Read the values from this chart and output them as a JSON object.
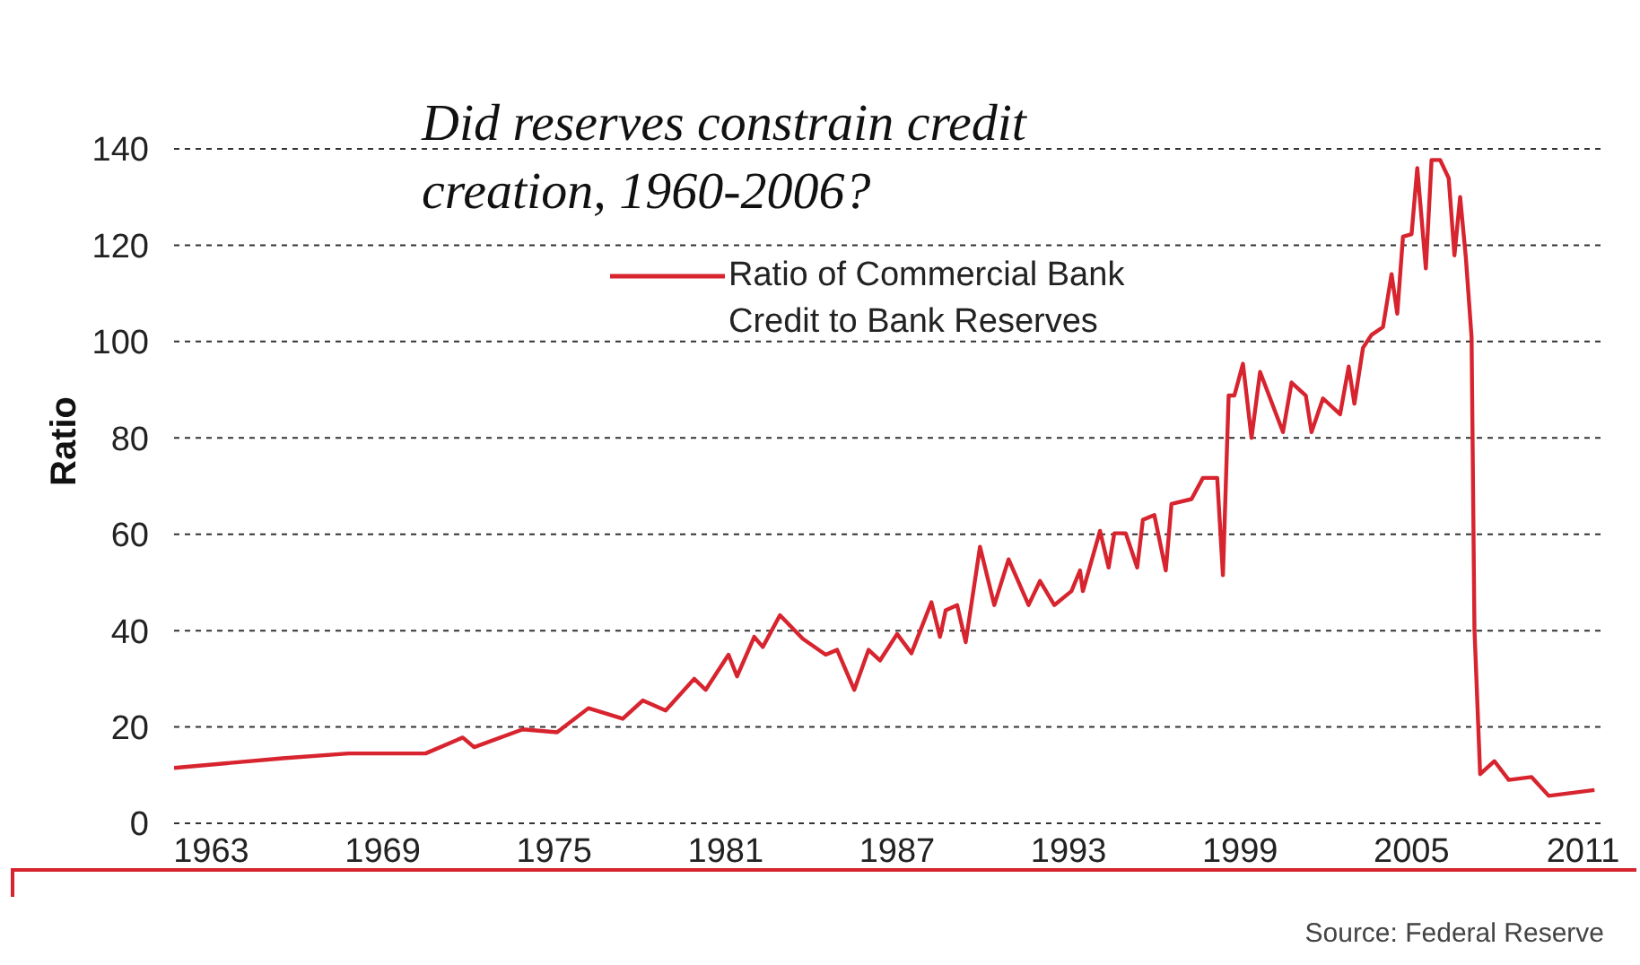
{
  "chart_data": {
    "type": "line",
    "title": "Did reserves constrain credit creation, 1960-2006?",
    "ylabel": "Ratio",
    "annotations": [
      "Source: Federal Reserve"
    ],
    "xlim": [
      1961.7,
      2011.8
    ],
    "xticks": [
      1963,
      1969,
      1975,
      1981,
      1987,
      1993,
      1999,
      2005,
      2011
    ],
    "ylim": [
      0,
      140
    ],
    "yticks": [
      0,
      20,
      40,
      60,
      80,
      100,
      120,
      140
    ],
    "grid": "y",
    "legend": "top",
    "marker": "none",
    "line_style": "solid",
    "series": [
      {
        "name": "Ratio of Commercial Bank Credit to Bank Reserves",
        "color": "#d7242e",
        "x": [
          1961.7,
          1965.5,
          1967.8,
          1970.5,
          1971.8,
          1972.2,
          1973.9,
          1975.1,
          1976.2,
          1977.4,
          1978.1,
          1978.9,
          1979.9,
          1980.3,
          1981.1,
          1981.4,
          1982,
          1982.3,
          1982.9,
          1983.7,
          1984.5,
          1984.9,
          1985.5,
          1986,
          1986.4,
          1987,
          1987.5,
          1988.2,
          1988.5,
          1988.7,
          1989.1,
          1989.4,
          1989.9,
          1990.4,
          1990.9,
          1991.6,
          1992,
          1992.5,
          1993.1,
          1993.4,
          1993.5,
          1994.1,
          1994.4,
          1994.6,
          1995,
          1995.4,
          1995.6,
          1996,
          1996.4,
          1996.6,
          1997.3,
          1997.7,
          1998.2,
          1998.4,
          1998.6,
          1998.8,
          1999.1,
          1999.4,
          1999.7,
          2000.5,
          2000.8,
          2001.3,
          2001.5,
          2001.9,
          2002.5,
          2002.8,
          2003,
          2003.3,
          2003.6,
          2004,
          2004.3,
          2004.5,
          2004.7,
          2005,
          2005.2,
          2005.5,
          2005.7,
          2006,
          2006.3,
          2006.5,
          2006.7,
          2006.9,
          2007.1,
          2007.2,
          2007.4,
          2007.9,
          2008.4,
          2009.2,
          2009.8,
          2011.4
        ],
        "values": [
          11.5,
          13.5,
          14.5,
          14.5,
          17.8,
          15.8,
          19.5,
          18.9,
          23.9,
          21.7,
          25.5,
          23.4,
          30,
          27.7,
          35,
          30.5,
          38.7,
          36.6,
          43.2,
          38.3,
          35,
          36,
          27.7,
          36,
          33.8,
          39.3,
          35.3,
          45.9,
          38.7,
          44.2,
          45.3,
          37.6,
          57.4,
          45.3,
          54.8,
          45.3,
          50.3,
          45.3,
          48.2,
          52.5,
          48.2,
          60.7,
          53.1,
          60.2,
          60.2,
          53.1,
          63,
          64,
          52.5,
          66.3,
          67.3,
          71.7,
          71.7,
          51.5,
          88.8,
          88.8,
          95.4,
          80,
          93.7,
          81.2,
          91.5,
          88.8,
          81.2,
          88.2,
          84.9,
          94.8,
          87.1,
          98.7,
          101.4,
          103,
          114,
          105.8,
          121.8,
          122.3,
          136,
          115.2,
          137.7,
          137.7,
          133.9,
          117.9,
          130,
          117.4,
          100.9,
          40.4,
          10.2,
          12.9,
          9,
          9.6,
          5.7,
          6.9
        ]
      }
    ]
  }
}
